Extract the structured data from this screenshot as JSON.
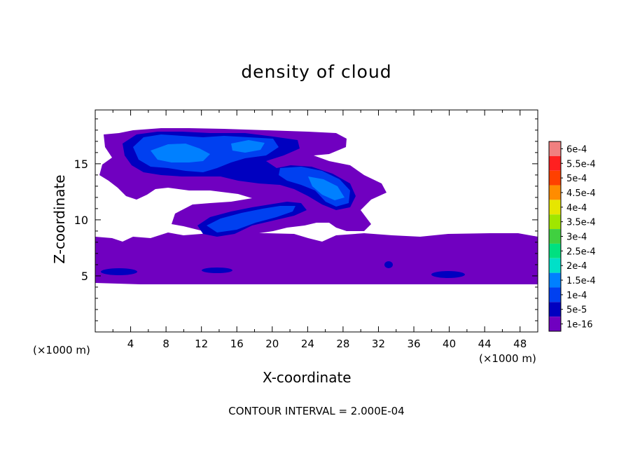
{
  "chart_data": {
    "type": "heatmap",
    "title": "density of cloud",
    "xlabel": "X-coordinate",
    "ylabel": "Z-coordinate",
    "x_unit": "(×1000 m)",
    "y_unit": "(×1000 m)",
    "xlim": [
      0,
      50
    ],
    "ylim": [
      0,
      19.8
    ],
    "x_ticks": [
      "4",
      "8",
      "12",
      "16",
      "20",
      "24",
      "28",
      "32",
      "36",
      "40",
      "44",
      "48"
    ],
    "y_ticks": [
      "5",
      "10",
      "15"
    ],
    "colorbar": {
      "labels": [
        "6e-4",
        "5.5e-4",
        "5e-4",
        "4.5e-4",
        "4e-4",
        "3.5e-4",
        "3e-4",
        "2.5e-4",
        "2e-4",
        "1.5e-4",
        "1e-4",
        "5e-5",
        "1e-16"
      ],
      "colors": [
        "#f08080",
        "#ff2020",
        "#ff4000",
        "#ff8c00",
        "#e6e600",
        "#a0e600",
        "#40d040",
        "#00e080",
        "#00e0c8",
        "#0080ff",
        "#0040f0",
        "#0000c0",
        "#7000c0"
      ]
    },
    "footnote": "CONTOUR INTERVAL = 2.000E-04",
    "regions": [
      {
        "level": "1e-16",
        "shape": "low layer",
        "x": [
          0,
          50
        ],
        "z": [
          4.2,
          8.6
        ]
      },
      {
        "level": "1e-16",
        "shape": "upper cloud",
        "x": [
          0.8,
          32
        ],
        "z": [
          9,
          18.2
        ]
      },
      {
        "level": "5e-5",
        "shape": "upper core",
        "x": [
          3,
          28
        ],
        "z": [
          13.5,
          17.8
        ]
      },
      {
        "level": "1e-4",
        "shape": "upper core",
        "x": [
          5,
          20
        ],
        "z": [
          14.5,
          17.5
        ]
      },
      {
        "level": "5e-5",
        "shape": "tilted band",
        "x": [
          21,
          29
        ],
        "z": [
          11,
          15.5
        ]
      },
      {
        "level": "1e-4",
        "shape": "tilted band",
        "x": [
          22,
          29
        ],
        "z": [
          11.5,
          14.8
        ]
      },
      {
        "level": "5e-5",
        "shape": "mid band",
        "x": [
          12,
          23
        ],
        "z": [
          8.5,
          11.5
        ]
      },
      {
        "level": "1e-4",
        "shape": "mid band",
        "x": [
          14,
          22
        ],
        "z": [
          9,
          11
        ]
      }
    ]
  }
}
